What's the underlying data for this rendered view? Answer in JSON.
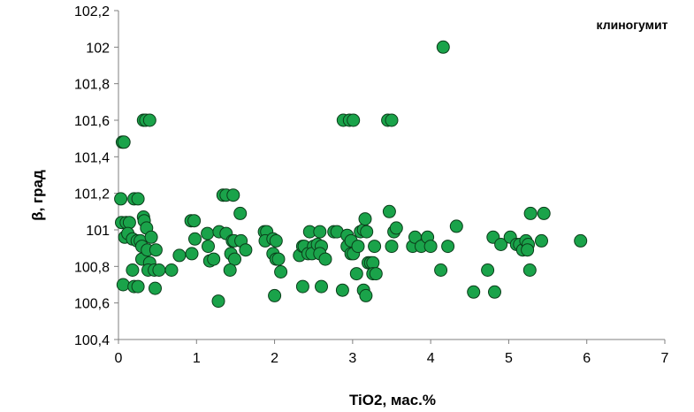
{
  "chart_data": {
    "type": "scatter",
    "title": "",
    "annotation": "клиногумит",
    "xlabel": "TiO2, мас.%",
    "ylabel": "β, град",
    "xlim": [
      0,
      7
    ],
    "ylim": [
      100.4,
      102.2
    ],
    "xticks": [
      "0",
      "1",
      "2",
      "3",
      "4",
      "5",
      "6",
      "7"
    ],
    "yticks": [
      "100,4",
      "100,6",
      "100,8",
      "101",
      "101,2",
      "101,4",
      "101,6",
      "101,8",
      "102",
      "102,2"
    ],
    "grid": false,
    "legend": "none",
    "marker_fill": "#1aa34a",
    "marker_stroke": "#0b3d1a",
    "series": [
      {
        "points": [
          [
            0.05,
            101.48
          ],
          [
            0.07,
            101.48
          ],
          [
            0.03,
            101.17
          ],
          [
            0.2,
            101.17
          ],
          [
            0.25,
            101.17
          ],
          [
            0.04,
            101.04
          ],
          [
            0.1,
            101.04
          ],
          [
            0.14,
            101.04
          ],
          [
            0.08,
            100.96
          ],
          [
            0.12,
            100.98
          ],
          [
            0.18,
            100.95
          ],
          [
            0.24,
            100.94
          ],
          [
            0.06,
            100.7
          ],
          [
            0.2,
            100.69
          ],
          [
            0.25,
            100.69
          ],
          [
            0.3,
            100.84
          ],
          [
            0.28,
            100.94
          ],
          [
            0.32,
            101.07
          ],
          [
            0.33,
            101.05
          ],
          [
            0.36,
            101.01
          ],
          [
            0.3,
            100.91
          ],
          [
            0.37,
            100.89
          ],
          [
            0.42,
            100.96
          ],
          [
            0.48,
            100.89
          ],
          [
            0.18,
            100.78
          ],
          [
            0.4,
            100.82
          ],
          [
            0.38,
            100.78
          ],
          [
            0.46,
            100.78
          ],
          [
            0.52,
            100.78
          ],
          [
            0.47,
            100.68
          ],
          [
            0.32,
            101.6
          ],
          [
            0.35,
            101.6
          ],
          [
            0.4,
            101.6
          ],
          [
            0.68,
            100.78
          ],
          [
            0.78,
            100.86
          ],
          [
            0.93,
            101.05
          ],
          [
            0.97,
            101.05
          ],
          [
            0.94,
            100.87
          ],
          [
            0.98,
            100.95
          ],
          [
            1.14,
            100.98
          ],
          [
            1.15,
            100.91
          ],
          [
            1.17,
            100.83
          ],
          [
            1.22,
            100.84
          ],
          [
            1.28,
            100.61
          ],
          [
            1.29,
            100.99
          ],
          [
            1.34,
            101.19
          ],
          [
            1.38,
            101.19
          ],
          [
            1.47,
            101.19
          ],
          [
            1.38,
            100.98
          ],
          [
            1.46,
            100.94
          ],
          [
            1.48,
            100.94
          ],
          [
            1.44,
            100.87
          ],
          [
            1.49,
            100.84
          ],
          [
            1.43,
            100.78
          ],
          [
            1.56,
            101.09
          ],
          [
            1.57,
            100.94
          ],
          [
            1.63,
            100.89
          ],
          [
            1.87,
            100.99
          ],
          [
            1.9,
            100.99
          ],
          [
            1.88,
            100.94
          ],
          [
            1.98,
            100.95
          ],
          [
            2.02,
            100.94
          ],
          [
            1.98,
            100.87
          ],
          [
            2.02,
            100.84
          ],
          [
            2.05,
            100.84
          ],
          [
            2.08,
            100.77
          ],
          [
            2.0,
            100.64
          ],
          [
            2.32,
            100.86
          ],
          [
            2.36,
            100.91
          ],
          [
            2.38,
            100.91
          ],
          [
            2.36,
            100.69
          ],
          [
            2.43,
            100.87
          ],
          [
            2.45,
            100.99
          ],
          [
            2.5,
            100.91
          ],
          [
            2.48,
            100.87
          ],
          [
            2.55,
            100.92
          ],
          [
            2.58,
            100.99
          ],
          [
            2.6,
            100.91
          ],
          [
            2.58,
            100.87
          ],
          [
            2.65,
            100.84
          ],
          [
            2.6,
            100.69
          ],
          [
            2.76,
            100.99
          ],
          [
            2.8,
            100.99
          ],
          [
            2.87,
            100.67
          ],
          [
            2.93,
            100.97
          ],
          [
            2.93,
            100.91
          ],
          [
            2.98,
            100.94
          ],
          [
            2.98,
            100.87
          ],
          [
            3.01,
            100.87
          ],
          [
            3.05,
            100.76
          ],
          [
            3.07,
            100.91
          ],
          [
            3.1,
            100.99
          ],
          [
            3.14,
            101.0
          ],
          [
            3.16,
            101.06
          ],
          [
            3.18,
            100.99
          ],
          [
            3.14,
            100.67
          ],
          [
            3.17,
            100.64
          ],
          [
            3.2,
            100.82
          ],
          [
            3.23,
            100.82
          ],
          [
            3.26,
            100.82
          ],
          [
            3.26,
            100.76
          ],
          [
            3.28,
            100.91
          ],
          [
            3.3,
            100.76
          ],
          [
            2.88,
            101.6
          ],
          [
            2.96,
            101.6
          ],
          [
            3.01,
            101.6
          ],
          [
            3.45,
            101.6
          ],
          [
            3.5,
            101.6
          ],
          [
            3.47,
            101.1
          ],
          [
            3.53,
            100.99
          ],
          [
            3.56,
            101.01
          ],
          [
            3.5,
            100.91
          ],
          [
            3.77,
            100.91
          ],
          [
            3.8,
            100.96
          ],
          [
            3.88,
            100.91
          ],
          [
            3.96,
            100.96
          ],
          [
            4.0,
            100.91
          ],
          [
            4.13,
            100.78
          ],
          [
            4.16,
            102.0
          ],
          [
            4.22,
            100.91
          ],
          [
            4.33,
            101.02
          ],
          [
            4.55,
            100.66
          ],
          [
            4.73,
            100.78
          ],
          [
            4.8,
            100.96
          ],
          [
            4.82,
            100.66
          ],
          [
            4.9,
            100.92
          ],
          [
            5.02,
            100.96
          ],
          [
            5.1,
            100.92
          ],
          [
            5.14,
            100.92
          ],
          [
            5.18,
            100.89
          ],
          [
            5.22,
            100.94
          ],
          [
            5.25,
            100.92
          ],
          [
            5.24,
            100.89
          ],
          [
            5.27,
            100.78
          ],
          [
            5.28,
            101.09
          ],
          [
            5.42,
            100.94
          ],
          [
            5.45,
            101.09
          ],
          [
            5.92,
            100.94
          ]
        ]
      }
    ]
  }
}
